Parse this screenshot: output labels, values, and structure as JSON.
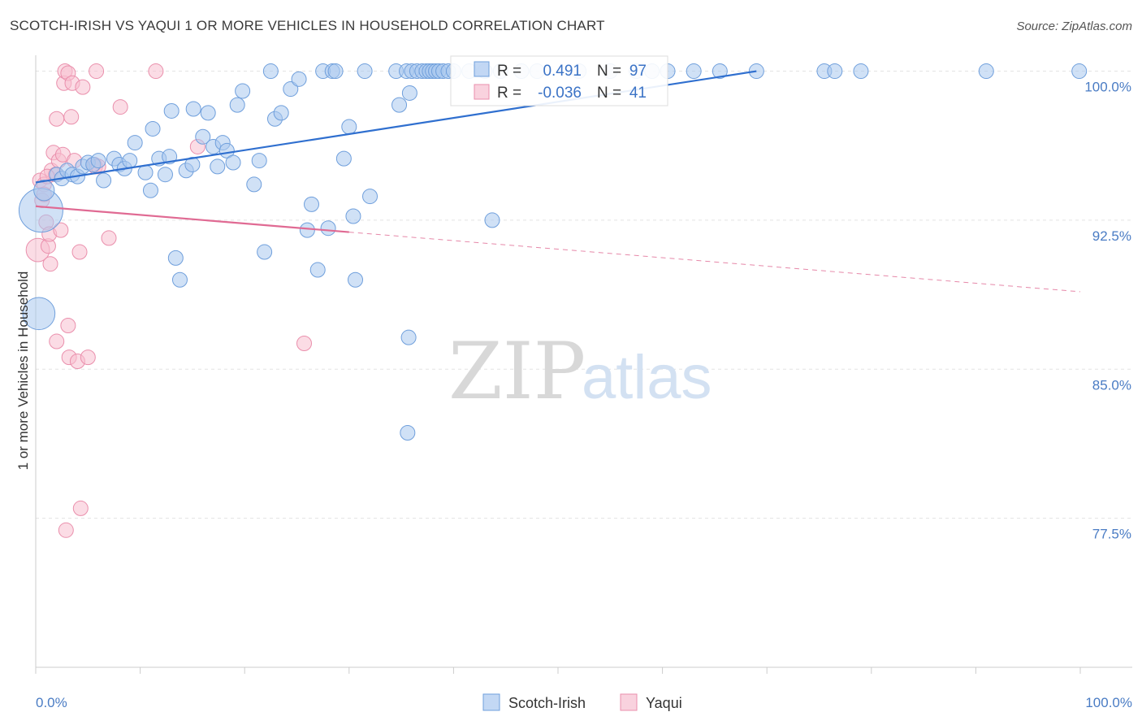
{
  "title": "SCOTCH-IRISH VS YAQUI 1 OR MORE VEHICLES IN HOUSEHOLD CORRELATION CHART",
  "source": "Source: ZipAtlas.com",
  "watermark": {
    "zip": "ZIP",
    "atlas": "atlas"
  },
  "colors": {
    "blue_fill": "#a9c8ef",
    "blue_stroke": "#6f9fdc",
    "blue_line": "#2f6fcf",
    "pink_fill": "#f7bfd0",
    "pink_stroke": "#ea8fac",
    "pink_line": "#e06a93",
    "tick_text": "#4a7cc4",
    "grid": "#e3e3e3"
  },
  "chart_data": {
    "type": "scatter",
    "xlabel": "",
    "ylabel": "1 or more Vehicles in Household",
    "xlim": [
      0,
      100
    ],
    "ylim": [
      70,
      100.8
    ],
    "x_tick_labels": [
      "0.0%",
      "100.0%"
    ],
    "y_ticks": [
      100.0,
      92.5,
      85.0,
      77.5
    ],
    "y_tick_labels": [
      "100.0%",
      "92.5%",
      "85.0%",
      "77.5%"
    ],
    "grid": "horizontal dashed",
    "legend_position": "top-center",
    "legend": [
      {
        "name": "Scotch-Irish",
        "r_label": "R =",
        "r": "0.491",
        "n_label": "N =",
        "n": "97"
      },
      {
        "name": "Yaqui",
        "r_label": "R =",
        "r": "-0.036",
        "n_label": "N =",
        "n": "41"
      }
    ],
    "series": [
      {
        "name": "Scotch-Irish",
        "color": "blue",
        "trend": {
          "x0": 0,
          "y0": 94.4,
          "x1": 69,
          "y1": 100.0,
          "dashed_to": null
        },
        "points": [
          [
            0.5,
            93.0,
            3
          ],
          [
            0.8,
            94.0,
            1.4
          ],
          [
            0.3,
            87.8,
            2.2
          ],
          [
            2,
            94.8,
            1
          ],
          [
            2.5,
            94.6,
            1
          ],
          [
            3,
            95.0,
            1
          ],
          [
            3.5,
            94.8,
            1
          ],
          [
            4,
            94.7,
            1
          ],
          [
            4.5,
            95.2,
            1
          ],
          [
            5,
            95.4,
            1
          ],
          [
            5.5,
            95.3,
            1
          ],
          [
            6,
            95.5,
            1
          ],
          [
            6.5,
            94.5,
            1
          ],
          [
            7.5,
            95.6,
            1
          ],
          [
            8,
            95.3,
            1
          ],
          [
            8.5,
            95.1,
            1
          ],
          [
            9,
            95.5,
            1
          ],
          [
            9.5,
            96.4,
            1
          ],
          [
            10.5,
            94.9,
            1
          ],
          [
            11,
            94.0,
            1
          ],
          [
            11.2,
            97.1,
            1
          ],
          [
            11.8,
            95.6,
            1
          ],
          [
            12.4,
            94.8,
            1
          ],
          [
            12.8,
            95.7,
            1
          ],
          [
            13,
            98.0,
            1
          ],
          [
            13.4,
            90.6,
            1
          ],
          [
            13.8,
            89.5,
            1
          ],
          [
            14.4,
            95.0,
            1
          ],
          [
            15,
            95.3,
            1
          ],
          [
            15.1,
            98.1,
            1
          ],
          [
            16,
            96.7,
            1
          ],
          [
            16.5,
            97.9,
            1
          ],
          [
            17,
            96.2,
            1
          ],
          [
            17.4,
            95.2,
            1
          ],
          [
            17.9,
            96.4,
            1
          ],
          [
            18.3,
            96.0,
            1
          ],
          [
            18.9,
            95.4,
            1
          ],
          [
            19.3,
            98.3,
            1
          ],
          [
            19.8,
            99.0,
            1
          ],
          [
            20.9,
            94.3,
            1
          ],
          [
            21.4,
            95.5,
            1
          ],
          [
            21.9,
            90.9,
            1
          ],
          [
            22.5,
            100.0,
            1
          ],
          [
            22.9,
            97.6,
            1
          ],
          [
            23.5,
            97.9,
            1
          ],
          [
            24.4,
            99.1,
            1
          ],
          [
            25.2,
            99.6,
            1
          ],
          [
            26,
            92.0,
            1
          ],
          [
            26.4,
            93.3,
            1
          ],
          [
            27,
            90.0,
            1
          ],
          [
            27.5,
            100.0,
            1
          ],
          [
            28,
            92.1,
            1
          ],
          [
            28.4,
            100.0,
            1
          ],
          [
            28.7,
            100.0,
            1
          ],
          [
            29.5,
            95.6,
            1
          ],
          [
            30,
            97.2,
            1
          ],
          [
            30.4,
            92.7,
            1
          ],
          [
            30.6,
            89.5,
            1
          ],
          [
            31.5,
            100.0,
            1
          ],
          [
            32,
            93.7,
            1
          ],
          [
            34.5,
            100.0,
            1
          ],
          [
            34.8,
            98.3,
            1
          ],
          [
            35.5,
            100.0,
            1
          ],
          [
            35.8,
            98.9,
            1
          ],
          [
            36,
            100.0,
            1
          ],
          [
            36.5,
            100.0,
            1
          ],
          [
            37,
            100.0,
            1
          ],
          [
            37.4,
            100.0,
            1
          ],
          [
            37.7,
            100.0,
            1
          ],
          [
            38,
            100.0,
            1
          ],
          [
            38.3,
            100.0,
            1
          ],
          [
            38.6,
            100.0,
            1
          ],
          [
            39,
            100.0,
            1
          ],
          [
            39.5,
            100.0,
            1
          ],
          [
            40,
            100.0,
            1
          ],
          [
            35.7,
            86.6,
            1
          ],
          [
            35.6,
            81.8,
            1
          ],
          [
            41.5,
            100.0,
            1
          ],
          [
            43,
            100.0,
            1
          ],
          [
            43.7,
            92.5,
            1
          ],
          [
            44.5,
            100.0,
            1
          ],
          [
            46.5,
            100.0,
            1
          ],
          [
            48,
            100.0,
            1
          ],
          [
            52,
            100.0,
            1
          ],
          [
            55,
            100.0,
            1
          ],
          [
            57.5,
            100.0,
            1
          ],
          [
            59,
            100.0,
            1
          ],
          [
            60.5,
            100.0,
            1
          ],
          [
            63,
            100.0,
            1
          ],
          [
            65.5,
            100.0,
            1
          ],
          [
            69,
            100.0,
            1
          ],
          [
            75.5,
            100.0,
            1
          ],
          [
            76.5,
            100.0,
            1
          ],
          [
            79,
            100.0,
            1
          ],
          [
            91,
            100.0,
            1
          ],
          [
            99.9,
            100.0,
            1
          ]
        ]
      },
      {
        "name": "Yaqui",
        "color": "pink",
        "trend": {
          "x0": 0,
          "y0": 93.2,
          "x1": 30,
          "y1": 91.9,
          "dashed_to": {
            "x": 100,
            "y": 88.9
          }
        },
        "points": [
          [
            0.2,
            91.0,
            1.6
          ],
          [
            0.4,
            94.5,
            1
          ],
          [
            0.6,
            93.5,
            1
          ],
          [
            0.8,
            94.3,
            1
          ],
          [
            0.8,
            93.8,
            1
          ],
          [
            1,
            92.4,
            1
          ],
          [
            1.2,
            91.2,
            1
          ],
          [
            1.3,
            91.8,
            1
          ],
          [
            1.4,
            90.3,
            1
          ],
          [
            1.5,
            95.0,
            1
          ],
          [
            1.7,
            95.9,
            1
          ],
          [
            1.9,
            94.8,
            1
          ],
          [
            2,
            97.6,
            1
          ],
          [
            2,
            86.4,
            1
          ],
          [
            2.2,
            95.5,
            1
          ],
          [
            2.4,
            92.0,
            1
          ],
          [
            2.6,
            95.8,
            1
          ],
          [
            2.7,
            99.4,
            1
          ],
          [
            2.8,
            100.0,
            1
          ],
          [
            3.1,
            99.9,
            1
          ],
          [
            3.1,
            87.2,
            1
          ],
          [
            3.2,
            85.6,
            1
          ],
          [
            3.4,
            97.7,
            1
          ],
          [
            3.5,
            99.4,
            1
          ],
          [
            3.7,
            95.5,
            1
          ],
          [
            4,
            85.4,
            1
          ],
          [
            4.2,
            90.9,
            1
          ],
          [
            4.3,
            78.0,
            1
          ],
          [
            4.5,
            99.2,
            1
          ],
          [
            5,
            85.6,
            1
          ],
          [
            5.6,
            95.3,
            1
          ],
          [
            5.7,
            95.2,
            1
          ],
          [
            5.8,
            100.0,
            1
          ],
          [
            6,
            95.2,
            1
          ],
          [
            7,
            91.6,
            1
          ],
          [
            8.1,
            98.2,
            1
          ],
          [
            11.5,
            100.0,
            1
          ],
          [
            15.5,
            96.2,
            1
          ],
          [
            2.9,
            76.9,
            1
          ],
          [
            25.7,
            86.3,
            1
          ],
          [
            1.1,
            94.7,
            1
          ]
        ]
      }
    ]
  }
}
